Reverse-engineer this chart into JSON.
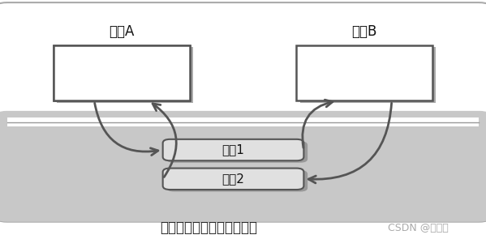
{
  "bg_color": "#ffffff",
  "outer_border_color": "#aaaaaa",
  "gray_bg_color": "#c8c8c8",
  "title": "利用两个管道实现双向通信",
  "watermark": "CSDN @白晨星",
  "proc_A_label": "进程A",
  "proc_B_label": "进程B",
  "pipe1_label": "管道1",
  "pipe2_label": "管道2",
  "box_color": "#ffffff",
  "box_edge_color": "#555555",
  "pipe_fill_color": "#e0e0e0",
  "pipe_edge_color": "#555555",
  "arrow_color": "#555555",
  "title_fontsize": 12,
  "label_fontsize": 12,
  "pipe_fontsize": 11,
  "watermark_fontsize": 9,
  "fig_w": 5.99,
  "fig_h": 3.11,
  "dpi": 100
}
